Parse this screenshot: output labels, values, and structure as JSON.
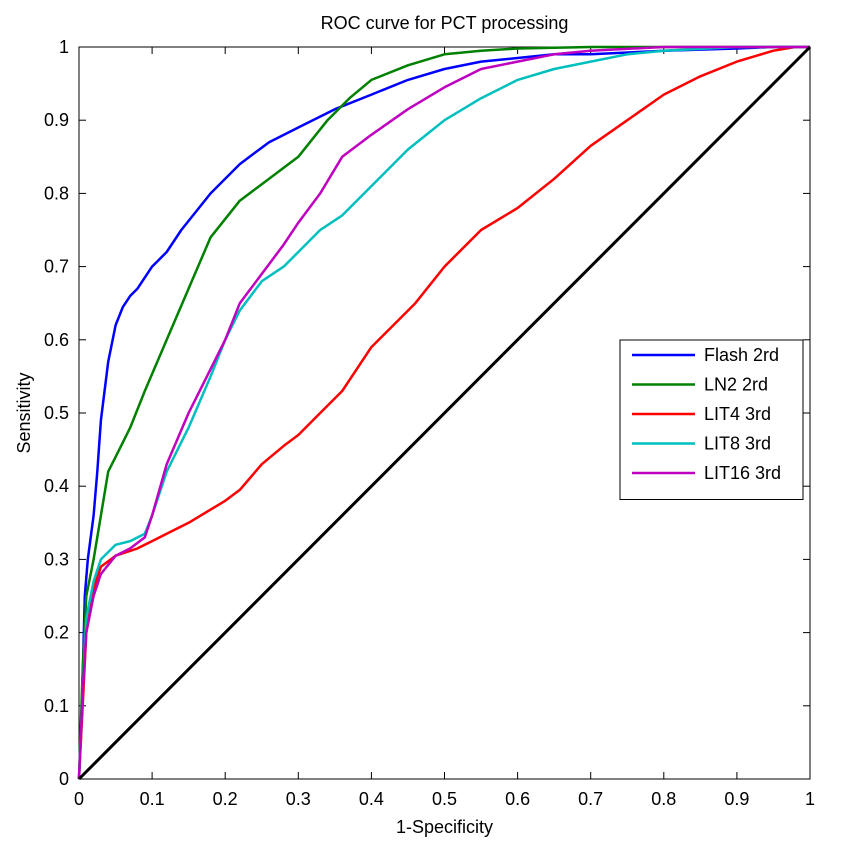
{
  "chart_data": {
    "type": "line",
    "title": "ROC curve for PCT processing",
    "xlabel": "1-Specificity",
    "ylabel": "Sensitivity",
    "xlim": [
      0,
      1
    ],
    "ylim": [
      0,
      1
    ],
    "xticks": [
      "0",
      "0.1",
      "0.2",
      "0.3",
      "0.4",
      "0.5",
      "0.6",
      "0.7",
      "0.8",
      "0.9",
      "1"
    ],
    "yticks": [
      "0",
      "0.1",
      "0.2",
      "0.3",
      "0.4",
      "0.5",
      "0.6",
      "0.7",
      "0.8",
      "0.9",
      "1"
    ],
    "grid": false,
    "legend_position": "right",
    "series": [
      {
        "name": "Flash 2rd",
        "color": "#0000ff",
        "x": [
          0,
          0.004,
          0.008,
          0.012,
          0.02,
          0.025,
          0.03,
          0.04,
          0.05,
          0.06,
          0.07,
          0.08,
          0.1,
          0.12,
          0.14,
          0.18,
          0.22,
          0.26,
          0.3,
          0.35,
          0.4,
          0.45,
          0.5,
          0.55,
          0.6,
          0.65,
          0.7,
          0.8,
          0.9,
          0.95,
          1.0
        ],
        "y": [
          0,
          0.1,
          0.25,
          0.3,
          0.36,
          0.42,
          0.49,
          0.57,
          0.62,
          0.645,
          0.66,
          0.67,
          0.7,
          0.72,
          0.75,
          0.8,
          0.84,
          0.87,
          0.89,
          0.915,
          0.935,
          0.955,
          0.97,
          0.98,
          0.985,
          0.99,
          0.99,
          0.995,
          0.998,
          1.0,
          1.0
        ]
      },
      {
        "name": "LN2 2rd",
        "color": "#008000",
        "x": [
          0,
          0.005,
          0.01,
          0.02,
          0.03,
          0.04,
          0.05,
          0.07,
          0.09,
          0.12,
          0.15,
          0.18,
          0.22,
          0.26,
          0.3,
          0.34,
          0.37,
          0.4,
          0.45,
          0.5,
          0.55,
          0.6,
          0.7,
          0.8,
          0.9,
          1.0
        ],
        "y": [
          0,
          0.15,
          0.25,
          0.3,
          0.36,
          0.42,
          0.44,
          0.48,
          0.53,
          0.6,
          0.67,
          0.74,
          0.79,
          0.82,
          0.85,
          0.9,
          0.93,
          0.955,
          0.975,
          0.99,
          0.995,
          0.998,
          1.0,
          1.0,
          1.0,
          1.0
        ]
      },
      {
        "name": "LIT4 3rd",
        "color": "#ff0000",
        "x": [
          0,
          0.005,
          0.01,
          0.02,
          0.03,
          0.05,
          0.08,
          0.1,
          0.12,
          0.15,
          0.2,
          0.22,
          0.25,
          0.28,
          0.3,
          0.33,
          0.36,
          0.4,
          0.43,
          0.46,
          0.5,
          0.55,
          0.6,
          0.65,
          0.7,
          0.75,
          0.8,
          0.85,
          0.9,
          0.95,
          0.98,
          1.0
        ],
        "y": [
          0,
          0.1,
          0.2,
          0.26,
          0.29,
          0.305,
          0.315,
          0.325,
          0.335,
          0.35,
          0.38,
          0.395,
          0.43,
          0.455,
          0.47,
          0.5,
          0.53,
          0.59,
          0.62,
          0.65,
          0.7,
          0.75,
          0.78,
          0.82,
          0.865,
          0.9,
          0.935,
          0.96,
          0.98,
          0.995,
          1.0,
          1.0
        ]
      },
      {
        "name": "LIT8 3rd",
        "color": "#00bfbf",
        "x": [
          0,
          0.005,
          0.01,
          0.02,
          0.03,
          0.05,
          0.07,
          0.09,
          0.1,
          0.12,
          0.15,
          0.18,
          0.2,
          0.22,
          0.25,
          0.28,
          0.3,
          0.33,
          0.36,
          0.4,
          0.45,
          0.5,
          0.55,
          0.6,
          0.65,
          0.7,
          0.75,
          0.8,
          0.9,
          1.0
        ],
        "y": [
          0,
          0.12,
          0.22,
          0.27,
          0.3,
          0.32,
          0.325,
          0.335,
          0.36,
          0.42,
          0.48,
          0.55,
          0.6,
          0.64,
          0.68,
          0.7,
          0.72,
          0.75,
          0.77,
          0.81,
          0.86,
          0.9,
          0.93,
          0.955,
          0.97,
          0.98,
          0.99,
          0.995,
          1.0,
          1.0
        ]
      },
      {
        "name": "LIT16 3rd",
        "color": "#bf00bf",
        "x": [
          0,
          0.005,
          0.01,
          0.02,
          0.03,
          0.05,
          0.07,
          0.09,
          0.1,
          0.12,
          0.15,
          0.18,
          0.2,
          0.22,
          0.25,
          0.28,
          0.3,
          0.33,
          0.36,
          0.4,
          0.45,
          0.5,
          0.55,
          0.6,
          0.65,
          0.7,
          0.8,
          0.9,
          1.0
        ],
        "y": [
          0,
          0.12,
          0.2,
          0.25,
          0.28,
          0.305,
          0.315,
          0.33,
          0.36,
          0.43,
          0.5,
          0.56,
          0.6,
          0.65,
          0.69,
          0.73,
          0.76,
          0.8,
          0.85,
          0.88,
          0.915,
          0.945,
          0.97,
          0.98,
          0.99,
          0.995,
          1.0,
          1.0,
          1.0
        ]
      },
      {
        "name": "",
        "color": "#000000",
        "x": [
          0,
          1
        ],
        "y": [
          0,
          1
        ]
      }
    ]
  }
}
